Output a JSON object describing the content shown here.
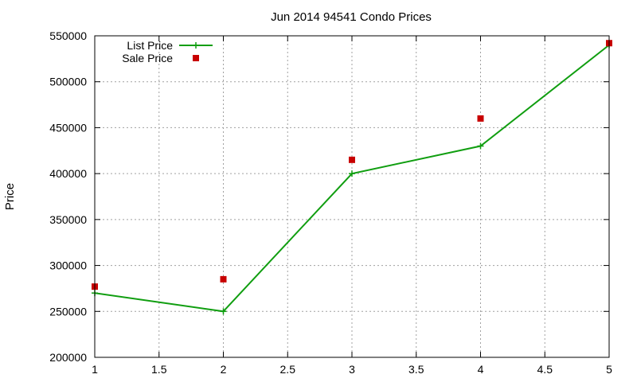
{
  "chart_data": {
    "type": "line",
    "title": "Jun 2014 94541 Condo Prices",
    "xlabel": "",
    "ylabel": "Price",
    "xlim": [
      1,
      5
    ],
    "ylim": [
      200000,
      550000
    ],
    "xticks": [
      1,
      1.5,
      2,
      2.5,
      3,
      3.5,
      4,
      4.5,
      5
    ],
    "xtick_labels": [
      "1",
      "1.5",
      "2",
      "2.5",
      "3",
      "3.5",
      "4",
      "4.5",
      "5"
    ],
    "yticks": [
      200000,
      250000,
      300000,
      350000,
      400000,
      450000,
      500000,
      550000
    ],
    "ytick_labels": [
      "200000",
      "250000",
      "300000",
      "350000",
      "400000",
      "450000",
      "500000",
      "550000"
    ],
    "grid": true,
    "legend_position": "top-left",
    "series": [
      {
        "name": "List Price",
        "style": "linespoints",
        "marker": "plus",
        "color": "#109e10",
        "x": [
          1,
          2,
          3,
          4,
          5
        ],
        "y": [
          270000,
          250000,
          400000,
          430000,
          540000
        ]
      },
      {
        "name": "Sale Price",
        "style": "points",
        "marker": "square",
        "color": "#c80000",
        "x": [
          1,
          2,
          3,
          4,
          5
        ],
        "y": [
          277000,
          285000,
          415000,
          460000,
          542000
        ]
      }
    ]
  }
}
